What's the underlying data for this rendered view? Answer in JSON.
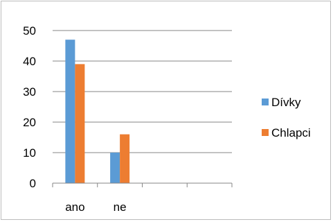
{
  "chart_data": {
    "type": "bar",
    "title": "",
    "xlabel": "",
    "ylabel": "",
    "categories": [
      "ano",
      "ne",
      "",
      ""
    ],
    "series": [
      {
        "name": "Dívky",
        "values": [
          47,
          10,
          null,
          null
        ],
        "color": "#5b9bd5"
      },
      {
        "name": "Chlapci",
        "values": [
          39,
          16,
          null,
          null
        ],
        "color": "#ed7d31"
      }
    ],
    "ylim": [
      0,
      50
    ],
    "yticks": [
      0,
      10,
      20,
      30,
      40,
      50
    ],
    "grid": true,
    "legend_position": "right"
  }
}
